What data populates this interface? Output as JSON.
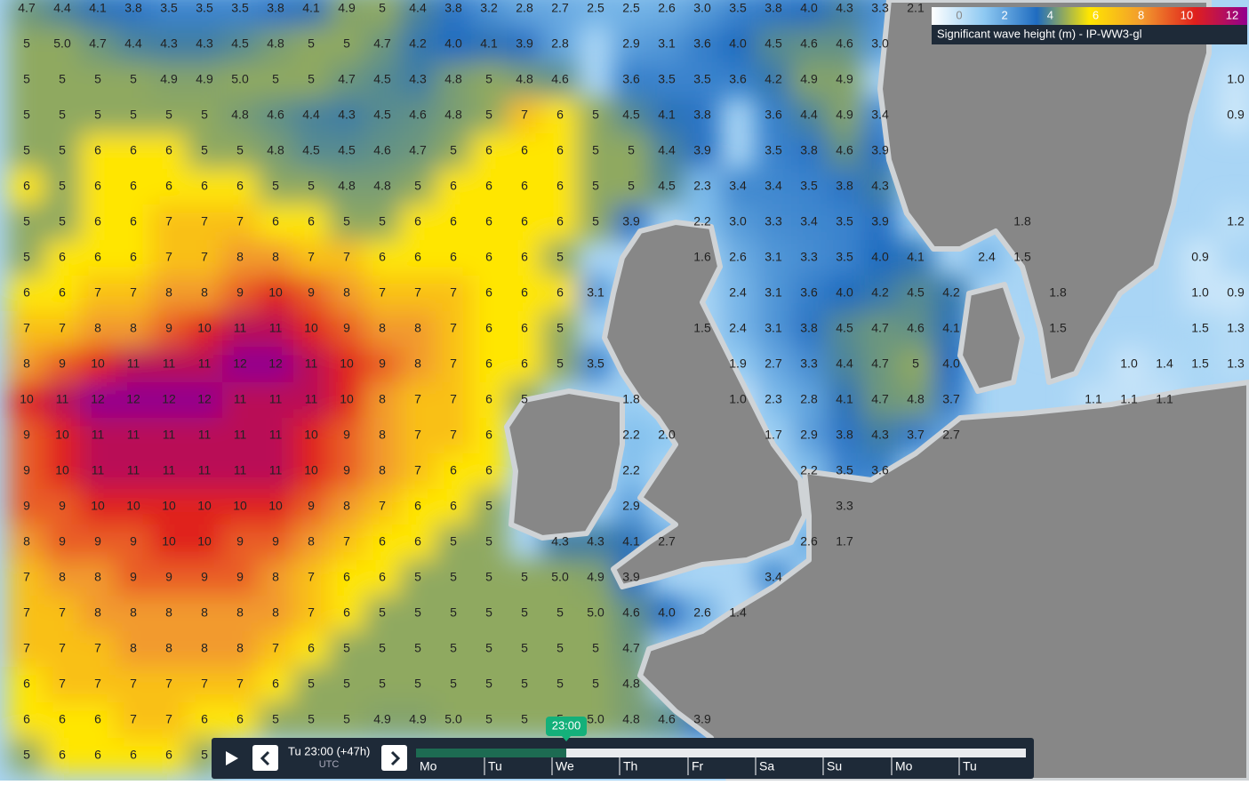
{
  "legend": {
    "ticks": [
      0,
      2,
      4,
      6,
      8,
      10,
      12
    ],
    "colors": [
      "#ffffff",
      "#8ec9f2",
      "#1f6cc0",
      "#ffe600",
      "#f29a2e",
      "#e0201c",
      "#92008f"
    ],
    "title": "Significant wave height (m) - IP-WW3-gl"
  },
  "grid": {
    "rows": [
      [
        "4.7",
        "4.4",
        "4.1",
        "3.8",
        "3.5",
        "3.5",
        "3.5",
        "3.8",
        "4.1",
        "4.9",
        "5",
        "4.4",
        "3.8",
        "3.2",
        "2.8",
        "2.7",
        "2.5",
        "2.5",
        "2.6",
        "3.0",
        "3.5",
        "3.8",
        "4.0",
        "4.3",
        "3.3",
        "2.1"
      ],
      [
        "5",
        "5.0",
        "4.7",
        "4.4",
        "4.3",
        "4.3",
        "4.5",
        "4.8",
        "5",
        "5",
        "4.7",
        "4.2",
        "4.0",
        "4.1",
        "3.9",
        "2.8",
        null,
        "2.9",
        "3.1",
        "3.6",
        "4.0",
        "4.5",
        "4.6",
        "4.6",
        "3.0"
      ],
      [
        "5",
        "5",
        "5",
        "5",
        "4.9",
        "4.9",
        "5.0",
        "5",
        "5",
        "4.7",
        "4.5",
        "4.3",
        "4.8",
        "5",
        "4.8",
        "4.6",
        null,
        "3.6",
        "3.5",
        "3.5",
        "3.6",
        "4.2",
        "4.9",
        "4.9",
        null,
        null,
        null,
        null,
        null,
        null,
        null,
        null,
        null,
        null,
        "1.0"
      ],
      [
        "5",
        "5",
        "5",
        "5",
        "5",
        "5",
        "4.8",
        "4.6",
        "4.4",
        "4.3",
        "4.5",
        "4.6",
        "4.8",
        "5",
        "7",
        "6",
        "5",
        "4.5",
        "4.1",
        "3.8",
        null,
        "3.6",
        "4.4",
        "4.9",
        "3.4",
        null,
        null,
        null,
        null,
        null,
        null,
        null,
        null,
        null,
        "0.9"
      ],
      [
        "5",
        "5",
        "6",
        "6",
        "6",
        "5",
        "5",
        "4.8",
        "4.5",
        "4.5",
        "4.6",
        "4.7",
        "5",
        "6",
        "6",
        "6",
        "5",
        "5",
        "4.4",
        "3.9",
        null,
        "3.5",
        "3.8",
        "4.6",
        "3.9"
      ],
      [
        "6",
        "5",
        "6",
        "6",
        "6",
        "6",
        "6",
        "5",
        "5",
        "4.8",
        "4.8",
        "5",
        "6",
        "6",
        "6",
        "6",
        "5",
        "5",
        "4.5",
        "2.3",
        "3.4",
        "3.4",
        "3.5",
        "3.8",
        "4.3"
      ],
      [
        "5",
        "5",
        "6",
        "6",
        "7",
        "7",
        "7",
        "6",
        "6",
        "5",
        "5",
        "6",
        "6",
        "6",
        "6",
        "6",
        "5",
        "3.9",
        null,
        "2.2",
        "3.0",
        "3.3",
        "3.4",
        "3.5",
        "3.9",
        null,
        null,
        null,
        "1.8",
        null,
        null,
        null,
        null,
        null,
        "1.2"
      ],
      [
        "5",
        "6",
        "6",
        "6",
        "7",
        "7",
        "8",
        "8",
        "7",
        "7",
        "6",
        "6",
        "6",
        "6",
        "6",
        "5",
        null,
        null,
        null,
        "1.6",
        "2.6",
        "3.1",
        "3.3",
        "3.5",
        "4.0",
        "4.1",
        null,
        "2.4",
        "1.5",
        null,
        null,
        null,
        null,
        "0.9"
      ],
      [
        "6",
        "6",
        "7",
        "7",
        "8",
        "8",
        "9",
        "10",
        "9",
        "8",
        "7",
        "7",
        "7",
        "6",
        "6",
        "6",
        "3.1",
        null,
        null,
        null,
        "2.4",
        "3.1",
        "3.6",
        "4.0",
        "4.2",
        "4.5",
        "4.2",
        null,
        null,
        "1.8",
        null,
        null,
        null,
        "1.0",
        "0.9"
      ],
      [
        "7",
        "7",
        "8",
        "8",
        "9",
        "10",
        "11",
        "11",
        "10",
        "9",
        "8",
        "8",
        "7",
        "6",
        "6",
        "5",
        null,
        null,
        null,
        "1.5",
        "2.4",
        "3.1",
        "3.8",
        "4.5",
        "4.7",
        "4.6",
        "4.1",
        null,
        null,
        "1.5",
        null,
        null,
        null,
        "1.5",
        "1.3"
      ],
      [
        "8",
        "9",
        "10",
        "11",
        "11",
        "11",
        "12",
        "12",
        "11",
        "10",
        "9",
        "8",
        "7",
        "6",
        "6",
        "5",
        "3.5",
        null,
        null,
        null,
        "1.9",
        "2.7",
        "3.3",
        "4.4",
        "4.7",
        "5",
        "4.0",
        null,
        null,
        null,
        null,
        "1.0",
        "1.4",
        "1.5",
        "1.3"
      ],
      [
        "10",
        "11",
        "12",
        "12",
        "12",
        "12",
        "11",
        "11",
        "11",
        "10",
        "8",
        "7",
        "7",
        "6",
        "5",
        null,
        null,
        "1.8",
        null,
        null,
        "1.0",
        "2.3",
        "2.8",
        "4.1",
        "4.7",
        "4.8",
        "3.7",
        null,
        null,
        null,
        "1.1",
        "1.1",
        "1.1"
      ],
      [
        "9",
        "10",
        "11",
        "11",
        "11",
        "11",
        "11",
        "11",
        "10",
        "9",
        "8",
        "7",
        "7",
        "6",
        null,
        null,
        null,
        "2.2",
        "2.0",
        null,
        null,
        "1.7",
        "2.9",
        "3.8",
        "4.3",
        "3.7",
        "2.7"
      ],
      [
        "9",
        "10",
        "11",
        "11",
        "11",
        "11",
        "11",
        "11",
        "10",
        "9",
        "8",
        "7",
        "6",
        "6",
        null,
        null,
        null,
        "2.2",
        null,
        null,
        null,
        null,
        "2.2",
        "3.5",
        "3.6"
      ],
      [
        "9",
        "9",
        "10",
        "10",
        "10",
        "10",
        "10",
        "10",
        "9",
        "8",
        "7",
        "6",
        "6",
        "5",
        null,
        null,
        null,
        "2.9",
        null,
        null,
        null,
        null,
        null,
        "3.3"
      ],
      [
        "8",
        "9",
        "9",
        "9",
        "10",
        "10",
        "9",
        "9",
        "8",
        "7",
        "6",
        "6",
        "5",
        "5",
        null,
        "4.3",
        "4.3",
        "4.1",
        "2.7",
        null,
        null,
        null,
        "2.6",
        "1.7"
      ],
      [
        "7",
        "8",
        "8",
        "9",
        "9",
        "9",
        "9",
        "8",
        "7",
        "6",
        "6",
        "5",
        "5",
        "5",
        "5",
        "5.0",
        "4.9",
        "3.9",
        null,
        null,
        null,
        "3.4"
      ],
      [
        "7",
        "7",
        "8",
        "8",
        "8",
        "8",
        "8",
        "8",
        "7",
        "6",
        "5",
        "5",
        "5",
        "5",
        "5",
        "5",
        "5.0",
        "4.6",
        "4.0",
        "2.6",
        "1.4"
      ],
      [
        "7",
        "7",
        "7",
        "8",
        "8",
        "8",
        "8",
        "7",
        "6",
        "5",
        "5",
        "5",
        "5",
        "5",
        "5",
        "5",
        "5",
        "4.7"
      ],
      [
        "6",
        "7",
        "7",
        "7",
        "7",
        "7",
        "7",
        "6",
        "5",
        "5",
        "5",
        "5",
        "5",
        "5",
        "5",
        "5",
        "5",
        "4.8"
      ],
      [
        "6",
        "6",
        "6",
        "7",
        "7",
        "6",
        "6",
        "5",
        "5",
        "5",
        "4.9",
        "4.9",
        "5.0",
        "5",
        "5",
        "5",
        "5.0",
        "4.8",
        "4.6",
        "3.9"
      ],
      [
        "5",
        "6",
        "6",
        "6",
        "6",
        "5"
      ]
    ]
  },
  "timeline": {
    "current": "Tu 23:00 (+47h)",
    "timezone": "UTC",
    "marker": "23:00",
    "days": [
      "Mo",
      "Tu",
      "We",
      "Th",
      "Fr",
      "Sa",
      "Su",
      "Mo",
      "Tu"
    ]
  }
}
